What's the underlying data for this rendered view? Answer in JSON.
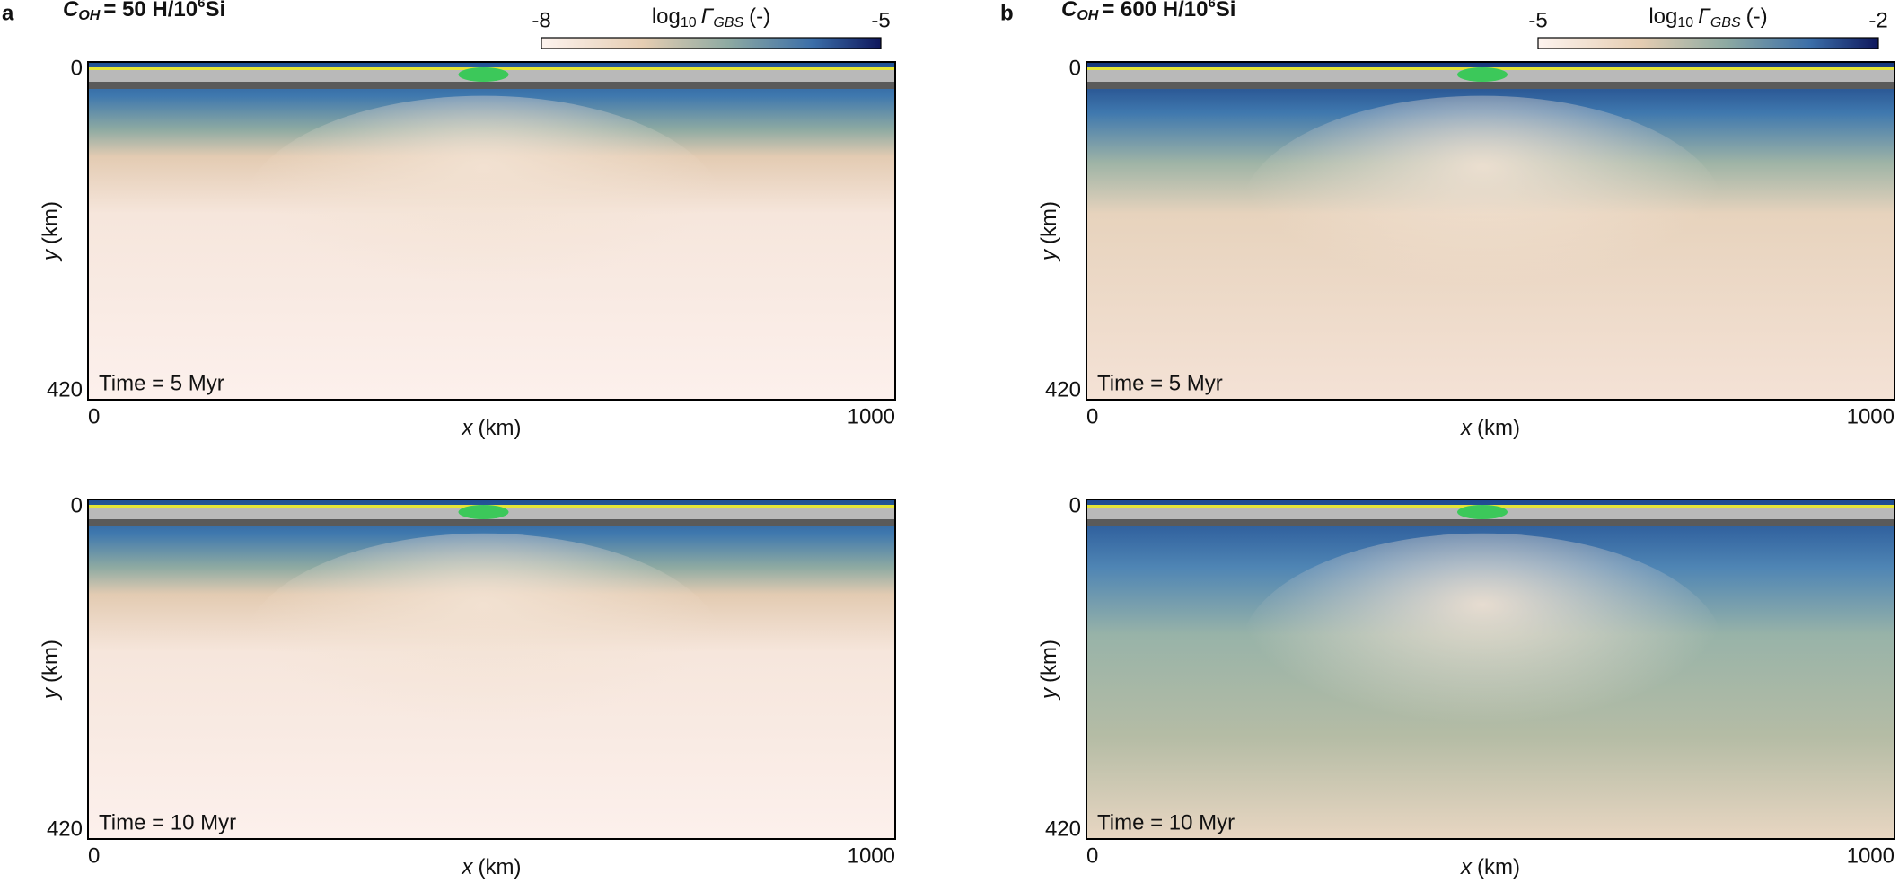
{
  "chart_data": [
    {
      "type": "field",
      "panel_label": "a",
      "title": [
        "C",
        "OH",
        "= 50 H/10",
        "6",
        "Si"
      ],
      "colorbar": {
        "label": [
          "log",
          "10",
          "Γ",
          "GBS",
          "(-)"
        ],
        "lim": [
          -8,
          -5
        ],
        "ticks": [
          -8,
          -5
        ]
      },
      "xlabel": [
        "x",
        "(km)"
      ],
      "ylabel": [
        "y",
        "(km)"
      ],
      "xlim": [
        0,
        1000
      ],
      "xticks": [
        0,
        1000
      ],
      "ylim": [
        0,
        420
      ],
      "yticks": [
        0,
        420
      ],
      "annotation": "Time = 5 Myr"
    },
    {
      "type": "field",
      "panel_label": "b",
      "title": [
        "C",
        "OH",
        "= 600 H/10",
        "6",
        "Si"
      ],
      "colorbar": {
        "label": [
          "log",
          "10",
          "Γ",
          "GBS",
          "(-)"
        ],
        "lim": [
          -5,
          -2
        ],
        "ticks": [
          -5,
          -2
        ]
      },
      "xlabel": [
        "x",
        "(km)"
      ],
      "ylabel": [
        "y",
        "(km)"
      ],
      "xlim": [
        0,
        1000
      ],
      "xticks": [
        0,
        1000
      ],
      "ylim": [
        0,
        420
      ],
      "yticks": [
        0,
        420
      ],
      "annotation": "Time = 5 Myr"
    },
    {
      "type": "field",
      "xlabel": [
        "x",
        "(km)"
      ],
      "ylabel": [
        "y",
        "(km)"
      ],
      "xlim": [
        0,
        1000
      ],
      "xticks": [
        0,
        1000
      ],
      "ylim": [
        0,
        420
      ],
      "yticks": [
        0,
        420
      ],
      "annotation": "Time = 10 Myr"
    },
    {
      "type": "field",
      "xlabel": [
        "x",
        "(km)"
      ],
      "ylabel": [
        "y",
        "(km)"
      ],
      "xlim": [
        0,
        1000
      ],
      "xticks": [
        0,
        1000
      ],
      "ylim": [
        0,
        420
      ],
      "yticks": [
        0,
        420
      ],
      "annotation": "Time = 10 Myr"
    }
  ]
}
